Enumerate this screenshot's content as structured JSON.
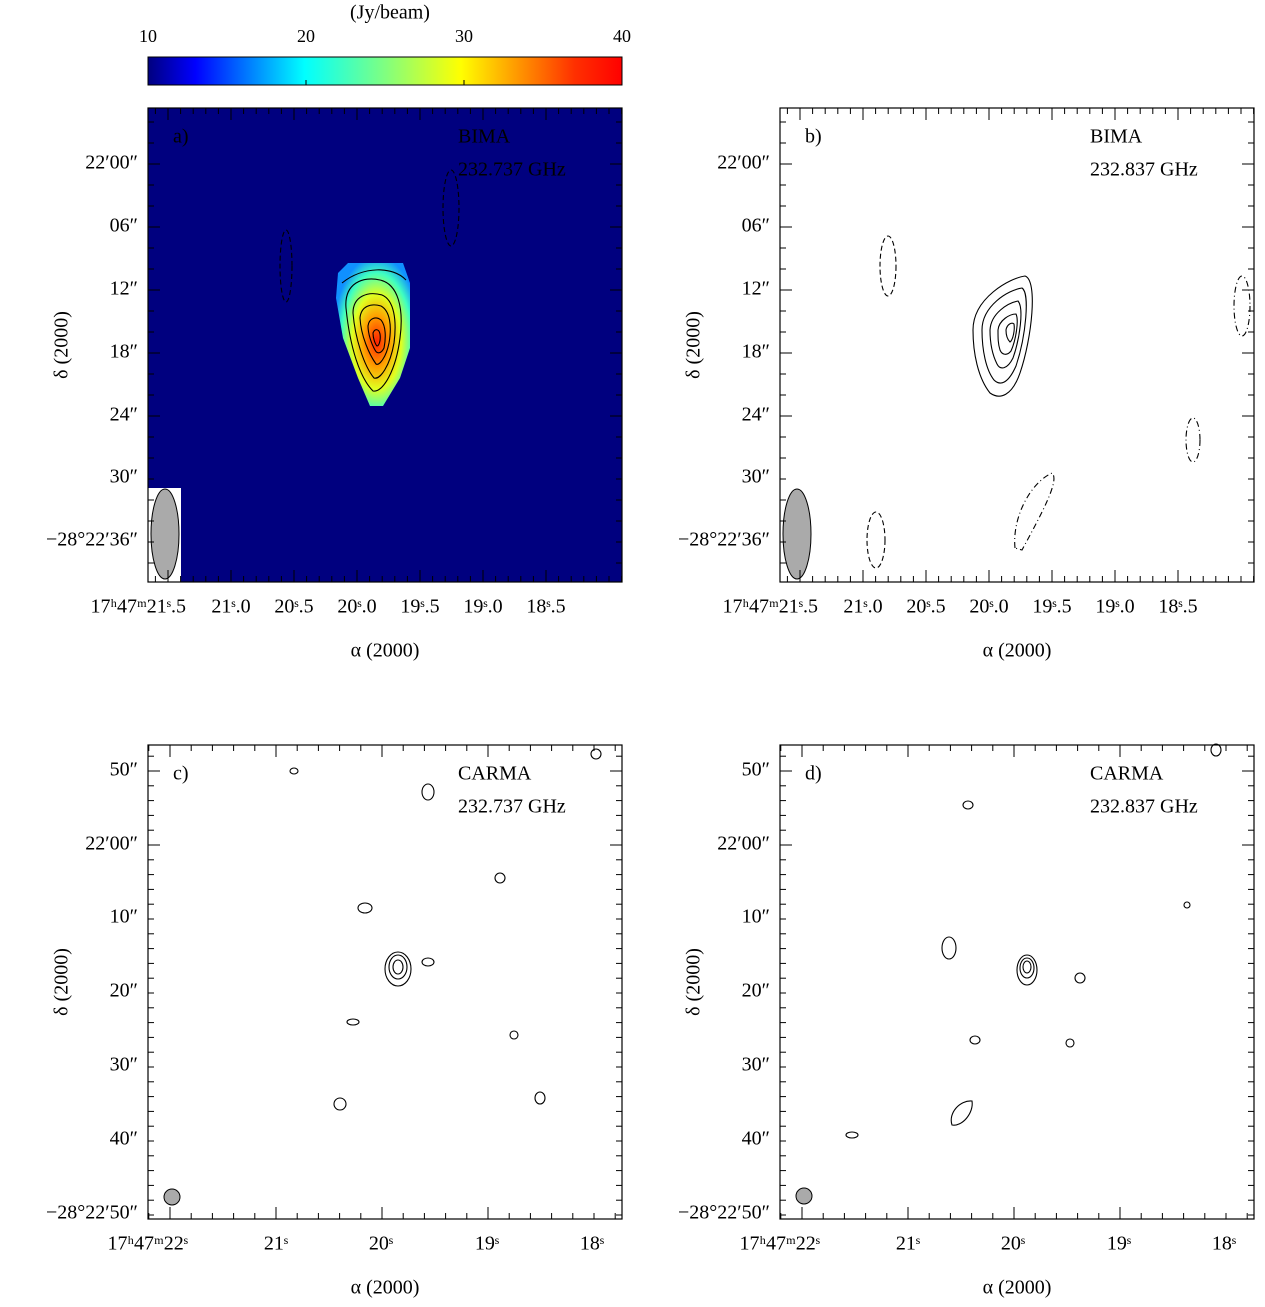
{
  "colorbar": {
    "label": "(Jy/beam)",
    "lim": [
      10,
      40
    ],
    "ticks": [
      10,
      20,
      30,
      40
    ]
  },
  "panels": [
    {
      "label": "a)",
      "telescope": "BIMA",
      "frequency": "232.737 GHz",
      "xlabel": "α (2000)",
      "ylabel": "δ (2000)",
      "xticklabels": [
        "17ʰ47ᵐ21ˢ.5",
        "21ˢ.0",
        "20ˢ.5",
        "20ˢ.0",
        "19ˢ.5",
        "19ˢ.0",
        "18ˢ.5"
      ],
      "yticklabels": [
        "22′00″",
        "06″",
        "12″",
        "18″",
        "24″",
        "30″",
        "−28°22′36″"
      ]
    },
    {
      "label": "b)",
      "telescope": "BIMA",
      "frequency": "232.837 GHz",
      "xlabel": "α (2000)",
      "ylabel": "δ (2000)",
      "xticklabels": [
        "17ʰ47ᵐ21ˢ.5",
        "21ˢ.0",
        "20ˢ.5",
        "20ˢ.0",
        "19ˢ.5",
        "19ˢ.0",
        "18ˢ.5"
      ],
      "yticklabels": [
        "22′00″",
        "06″",
        "12″",
        "18″",
        "24″",
        "30″",
        "−28°22′36″"
      ]
    },
    {
      "label": "c)",
      "telescope": "CARMA",
      "frequency": "232.737 GHz",
      "xlabel": "α (2000)",
      "ylabel": "δ (2000)",
      "xticklabels": [
        "17ʰ47ᵐ22ˢ",
        "21ˢ",
        "20ˢ",
        "19ˢ",
        "18ˢ"
      ],
      "yticklabels": [
        "50″",
        "22′00″",
        "10″",
        "20″",
        "30″",
        "40″",
        "−28°22′50″"
      ]
    },
    {
      "label": "d)",
      "telescope": "CARMA",
      "frequency": "232.837 GHz",
      "xlabel": "α (2000)",
      "ylabel": "δ (2000)",
      "xticklabels": [
        "17ʰ47ᵐ22ˢ",
        "21ˢ",
        "20ˢ",
        "19ˢ",
        "18ˢ"
      ],
      "yticklabels": [
        "50″",
        "22′00″",
        "10″",
        "20″",
        "30″",
        "40″",
        "−28°22′50″"
      ]
    }
  ]
}
